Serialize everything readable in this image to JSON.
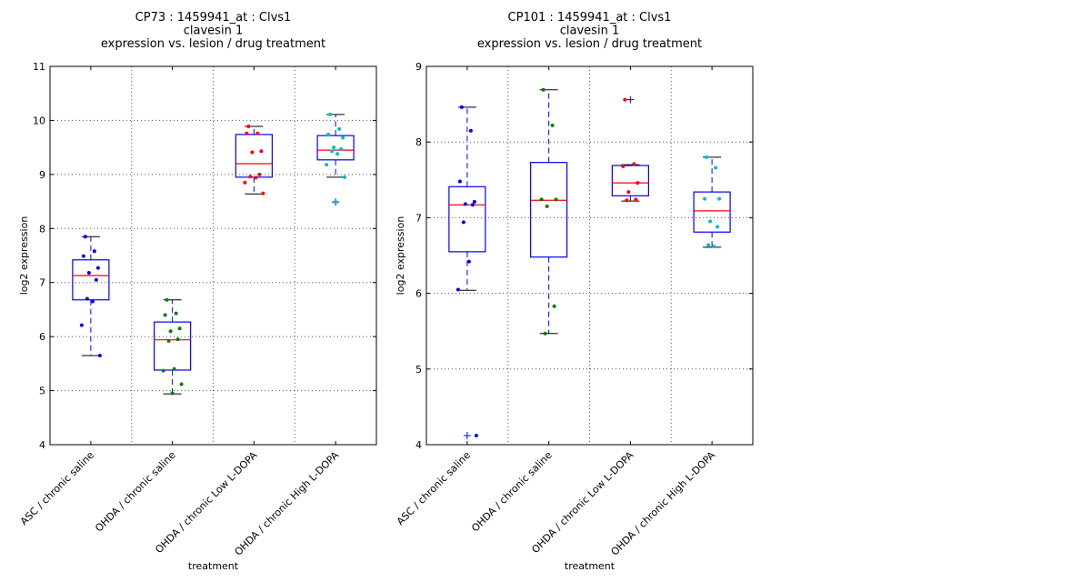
{
  "chart_data": [
    {
      "type": "box",
      "title_lines": [
        "CP73 : 1459941_at : Clvs1",
        "clavesin 1",
        "expression vs. lesion / drug treatment"
      ],
      "xlabel": "treatment",
      "ylabel": "log2 expression",
      "ylim": [
        4,
        11
      ],
      "yticks": [
        4,
        5,
        6,
        7,
        8,
        9,
        10,
        11
      ],
      "grid": true,
      "categories": [
        "ASC / chronic saline",
        "OHDA / chronic saline",
        "OHDA / chronic Low L-DOPA",
        "OHDA / chronic High L-DOPA"
      ],
      "colors": [
        "#0000ff",
        "#008000",
        "#ff0000",
        "#00bfbf"
      ],
      "boxes": [
        {
          "whislo": 5.65,
          "q1": 6.68,
          "med": 7.13,
          "q3": 7.42,
          "whishi": 7.85,
          "fliers": []
        },
        {
          "whislo": 4.94,
          "q1": 5.38,
          "med": 5.94,
          "q3": 6.27,
          "whishi": 6.68,
          "fliers": []
        },
        {
          "whislo": 8.64,
          "q1": 8.95,
          "med": 9.2,
          "q3": 9.74,
          "whishi": 9.89,
          "fliers": []
        },
        {
          "whislo": 8.95,
          "q1": 9.27,
          "med": 9.45,
          "q3": 9.72,
          "whishi": 10.11,
          "fliers": [
            8.49
          ]
        }
      ],
      "points": [
        [
          7.85,
          7.58,
          7.49,
          7.27,
          7.18,
          7.05,
          6.7,
          6.65,
          6.21,
          5.65
        ],
        [
          6.68,
          6.43,
          6.4,
          6.15,
          6.1,
          5.95,
          5.92,
          5.4,
          5.37,
          5.12,
          4.95
        ],
        [
          9.89,
          9.76,
          9.76,
          9.43,
          9.41,
          9.0,
          8.96,
          8.94,
          8.85,
          8.65
        ],
        [
          10.11,
          9.84,
          9.74,
          9.68,
          9.5,
          9.47,
          9.43,
          9.38,
          9.18,
          8.95,
          8.49
        ]
      ]
    },
    {
      "type": "box",
      "title_lines": [
        "CP101 : 1459941_at : Clvs1",
        "clavesin 1",
        "expression vs. lesion / drug treatment"
      ],
      "xlabel": "treatment",
      "ylabel": "log2 expression",
      "ylim": [
        4,
        9
      ],
      "yticks": [
        4,
        5,
        6,
        7,
        8,
        9
      ],
      "grid": true,
      "categories": [
        "ASC / chronic saline",
        "OHDA / chronic saline",
        "OHDA / chronic Low L-DOPA",
        "OHDA / chronic High L-DOPA"
      ],
      "colors": [
        "#0000ff",
        "#008000",
        "#ff0000",
        "#00bfbf"
      ],
      "boxes": [
        {
          "whislo": 6.04,
          "q1": 6.55,
          "med": 7.17,
          "q3": 7.41,
          "whishi": 8.46,
          "fliers": [
            4.12
          ]
        },
        {
          "whislo": 5.47,
          "q1": 6.48,
          "med": 7.23,
          "q3": 7.73,
          "whishi": 8.69,
          "fliers": []
        },
        {
          "whislo": 7.22,
          "q1": 7.29,
          "med": 7.46,
          "q3": 7.69,
          "whishi": 7.7,
          "fliers": [
            8.56
          ]
        },
        {
          "whislo": 6.61,
          "q1": 6.81,
          "med": 7.09,
          "q3": 7.34,
          "whishi": 7.8,
          "fliers": []
        }
      ],
      "points": [
        [
          8.46,
          8.15,
          7.48,
          7.21,
          7.18,
          7.17,
          6.94,
          6.42,
          6.05,
          4.12
        ],
        [
          8.69,
          8.22,
          7.24,
          7.24,
          7.15,
          5.83,
          5.47
        ],
        [
          8.56,
          7.71,
          7.68,
          7.46,
          7.34,
          7.24,
          7.23
        ],
        [
          7.8,
          7.66,
          7.25,
          7.25,
          6.95,
          6.88,
          6.64,
          6.62
        ]
      ]
    }
  ]
}
